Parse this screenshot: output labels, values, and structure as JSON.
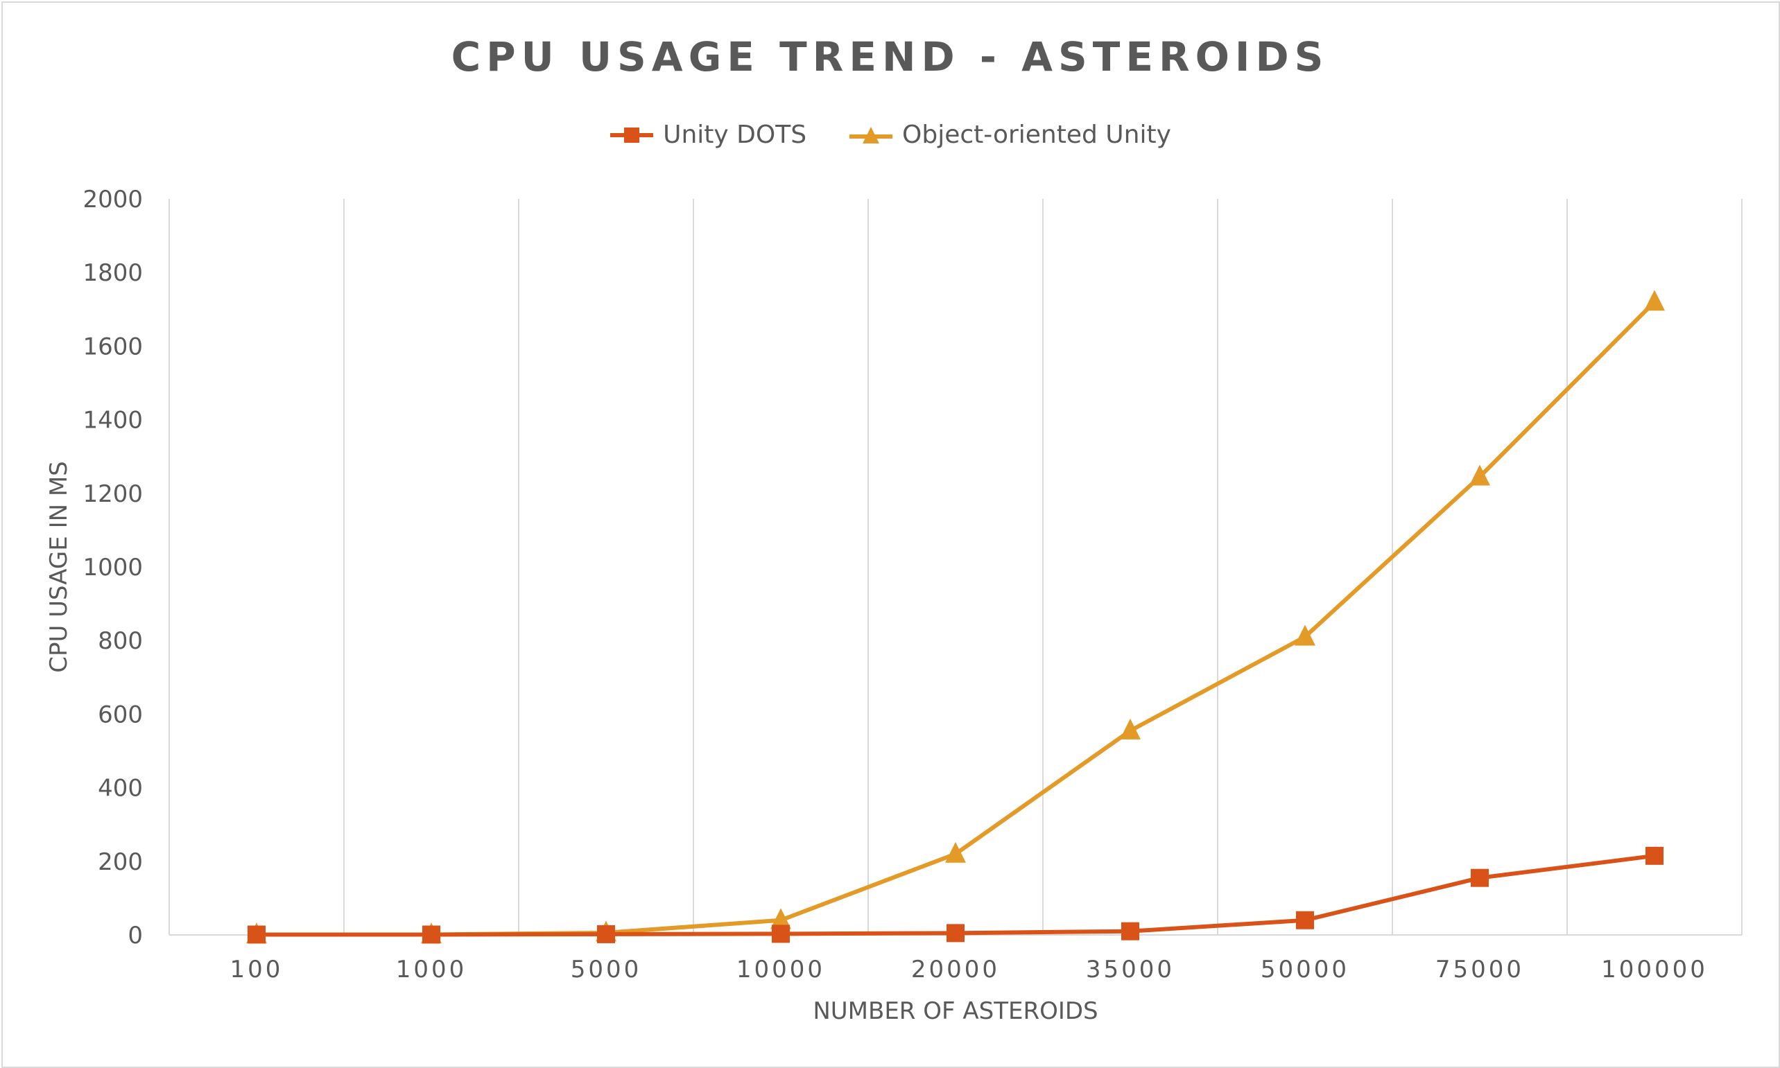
{
  "chart_data": {
    "type": "line",
    "title": "CPU USAGE TREND - ASTEROIDS",
    "xlabel": "NUMBER OF ASTEROIDS",
    "ylabel": "CPU USAGE IN MS",
    "categories": [
      "100",
      "1000",
      "5000",
      "10000",
      "20000",
      "35000",
      "50000",
      "75000",
      "100000"
    ],
    "ylim": [
      0,
      2000
    ],
    "yticks": [
      "0",
      "200",
      "400",
      "600",
      "800",
      "1000",
      "1200",
      "1400",
      "1600",
      "1800",
      "2000"
    ],
    "grid": "vertical",
    "legend_position": "top",
    "series": [
      {
        "name": "Unity DOTS",
        "color": "#d95319",
        "marker": "square",
        "values": [
          1,
          1,
          2,
          3,
          5,
          10,
          40,
          155,
          215
        ]
      },
      {
        "name": "Object-oriented Unity",
        "color": "#e39a26",
        "marker": "triangle",
        "values": [
          1,
          1,
          6,
          40,
          220,
          555,
          810,
          1245,
          1720
        ]
      }
    ]
  }
}
